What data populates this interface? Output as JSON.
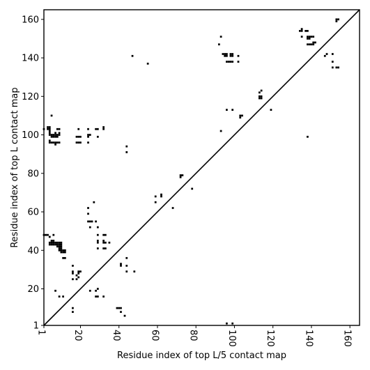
{
  "chart_data": {
    "type": "scatter",
    "xlabel": "Residue index of top L/5 contact map",
    "ylabel": "Residue index of top L contact map",
    "xlim": [
      1,
      165
    ],
    "ylim": [
      1,
      165
    ],
    "xticks": [
      1,
      20,
      40,
      60,
      80,
      100,
      120,
      140,
      160
    ],
    "yticks": [
      1,
      20,
      40,
      60,
      80,
      100,
      120,
      140,
      160
    ],
    "diagonal": true,
    "marker_color": "#000000",
    "upper_points": [
      [
        92,
        147
      ],
      [
        93,
        151
      ],
      [
        94,
        142
      ],
      [
        95,
        142
      ],
      [
        95,
        141
      ],
      [
        96,
        142
      ],
      [
        96,
        141
      ],
      [
        96,
        138
      ],
      [
        97,
        138
      ],
      [
        98,
        142
      ],
      [
        98,
        141
      ],
      [
        99,
        142
      ],
      [
        99,
        141
      ],
      [
        98,
        138
      ],
      [
        99,
        138
      ],
      [
        102,
        141
      ],
      [
        102,
        138
      ],
      [
        134,
        154
      ],
      [
        135,
        154
      ],
      [
        135,
        155
      ],
      [
        137,
        154
      ],
      [
        138,
        154
      ],
      [
        135,
        151
      ],
      [
        138,
        151
      ],
      [
        139,
        151
      ],
      [
        138,
        150
      ],
      [
        139,
        150
      ],
      [
        140,
        151
      ],
      [
        141,
        151
      ],
      [
        138,
        147
      ],
      [
        139,
        147
      ],
      [
        140,
        147
      ],
      [
        141,
        148
      ],
      [
        142,
        148
      ],
      [
        141,
        147
      ],
      [
        147,
        141
      ],
      [
        148,
        142
      ],
      [
        151,
        142
      ],
      [
        151,
        138
      ],
      [
        151,
        135
      ],
      [
        153,
        135
      ],
      [
        154,
        135
      ],
      [
        153,
        159
      ],
      [
        154,
        160
      ],
      [
        153,
        160
      ],
      [
        113,
        122
      ],
      [
        114,
        123
      ],
      [
        113,
        120
      ],
      [
        114,
        120
      ],
      [
        113,
        119
      ],
      [
        114,
        119
      ],
      [
        103,
        110
      ],
      [
        104,
        110
      ],
      [
        103,
        109
      ],
      [
        119,
        113
      ],
      [
        96,
        113
      ],
      [
        99,
        113
      ],
      [
        93,
        102
      ],
      [
        138,
        99
      ],
      [
        47,
        141
      ],
      [
        55,
        137
      ],
      [
        62,
        69
      ],
      [
        62,
        68
      ],
      [
        59,
        68
      ],
      [
        59,
        65
      ],
      [
        68,
        62
      ],
      [
        72,
        79
      ],
      [
        73,
        79
      ],
      [
        72,
        78
      ],
      [
        78,
        72
      ]
    ],
    "lower_points": [
      [
        1,
        103
      ],
      [
        3,
        103
      ],
      [
        3,
        104
      ],
      [
        4,
        104
      ],
      [
        4,
        103
      ],
      [
        4,
        102
      ],
      [
        4,
        101
      ],
      [
        4,
        100
      ],
      [
        5,
        100
      ],
      [
        6,
        100
      ],
      [
        5,
        99
      ],
      [
        6,
        99
      ],
      [
        7,
        99
      ],
      [
        8,
        99
      ],
      [
        7,
        100
      ],
      [
        8,
        100
      ],
      [
        9,
        100
      ],
      [
        7,
        101
      ],
      [
        9,
        101
      ],
      [
        8,
        103
      ],
      [
        9,
        103
      ],
      [
        5,
        110
      ],
      [
        4,
        97
      ],
      [
        4,
        96
      ],
      [
        5,
        96
      ],
      [
        6,
        96
      ],
      [
        7,
        96
      ],
      [
        8,
        96
      ],
      [
        9,
        96
      ],
      [
        7,
        95
      ],
      [
        19,
        103
      ],
      [
        19,
        99
      ],
      [
        20,
        99
      ],
      [
        18,
        99
      ],
      [
        18,
        96
      ],
      [
        19,
        96
      ],
      [
        20,
        96
      ],
      [
        24,
        103
      ],
      [
        24,
        100
      ],
      [
        25,
        100
      ],
      [
        24,
        99
      ],
      [
        24,
        96
      ],
      [
        28,
        103
      ],
      [
        29,
        103
      ],
      [
        29,
        99
      ],
      [
        32,
        103
      ],
      [
        32,
        104
      ],
      [
        44,
        94
      ],
      [
        44,
        91
      ],
      [
        1,
        48
      ],
      [
        2,
        48
      ],
      [
        3,
        48
      ],
      [
        4,
        47
      ],
      [
        6,
        48
      ],
      [
        4,
        44
      ],
      [
        4,
        43
      ],
      [
        5,
        45
      ],
      [
        6,
        45
      ],
      [
        5,
        44
      ],
      [
        6,
        44
      ],
      [
        7,
        44
      ],
      [
        8,
        44
      ],
      [
        9,
        44
      ],
      [
        10,
        44
      ],
      [
        5,
        43
      ],
      [
        6,
        43
      ],
      [
        7,
        43
      ],
      [
        8,
        43
      ],
      [
        9,
        43
      ],
      [
        10,
        43
      ],
      [
        8,
        42
      ],
      [
        9,
        42
      ],
      [
        10,
        42
      ],
      [
        9,
        41
      ],
      [
        10,
        41
      ],
      [
        9,
        40
      ],
      [
        10,
        40
      ],
      [
        11,
        40
      ],
      [
        12,
        40
      ],
      [
        10,
        39
      ],
      [
        11,
        39
      ],
      [
        12,
        39
      ],
      [
        11,
        36
      ],
      [
        12,
        36
      ],
      [
        24,
        62
      ],
      [
        24,
        59
      ],
      [
        24,
        55
      ],
      [
        25,
        55
      ],
      [
        26,
        55
      ],
      [
        25,
        52
      ],
      [
        27,
        65
      ],
      [
        28,
        55
      ],
      [
        29,
        52
      ],
      [
        29,
        48
      ],
      [
        29,
        45
      ],
      [
        29,
        44
      ],
      [
        29,
        41
      ],
      [
        32,
        48
      ],
      [
        33,
        48
      ],
      [
        32,
        45
      ],
      [
        32,
        44
      ],
      [
        33,
        44
      ],
      [
        32,
        41
      ],
      [
        33,
        41
      ],
      [
        35,
        44
      ],
      [
        44,
        36
      ],
      [
        41,
        33
      ],
      [
        41,
        32
      ],
      [
        44,
        32
      ],
      [
        44,
        29
      ],
      [
        48,
        29
      ],
      [
        16,
        32
      ],
      [
        16,
        29
      ],
      [
        16,
        28
      ],
      [
        19,
        29
      ],
      [
        20,
        29
      ],
      [
        19,
        28
      ],
      [
        18,
        27
      ],
      [
        19,
        26
      ],
      [
        16,
        25
      ],
      [
        18,
        25
      ],
      [
        7,
        19
      ],
      [
        9,
        16
      ],
      [
        11,
        16
      ],
      [
        16,
        10
      ],
      [
        16,
        8
      ],
      [
        25,
        19
      ],
      [
        28,
        19
      ],
      [
        29,
        20
      ],
      [
        28,
        16
      ],
      [
        29,
        16
      ],
      [
        32,
        16
      ],
      [
        39,
        10
      ],
      [
        40,
        10
      ],
      [
        41,
        10
      ],
      [
        41,
        8
      ],
      [
        43,
        6
      ],
      [
        96,
        2
      ],
      [
        99,
        2
      ]
    ]
  }
}
